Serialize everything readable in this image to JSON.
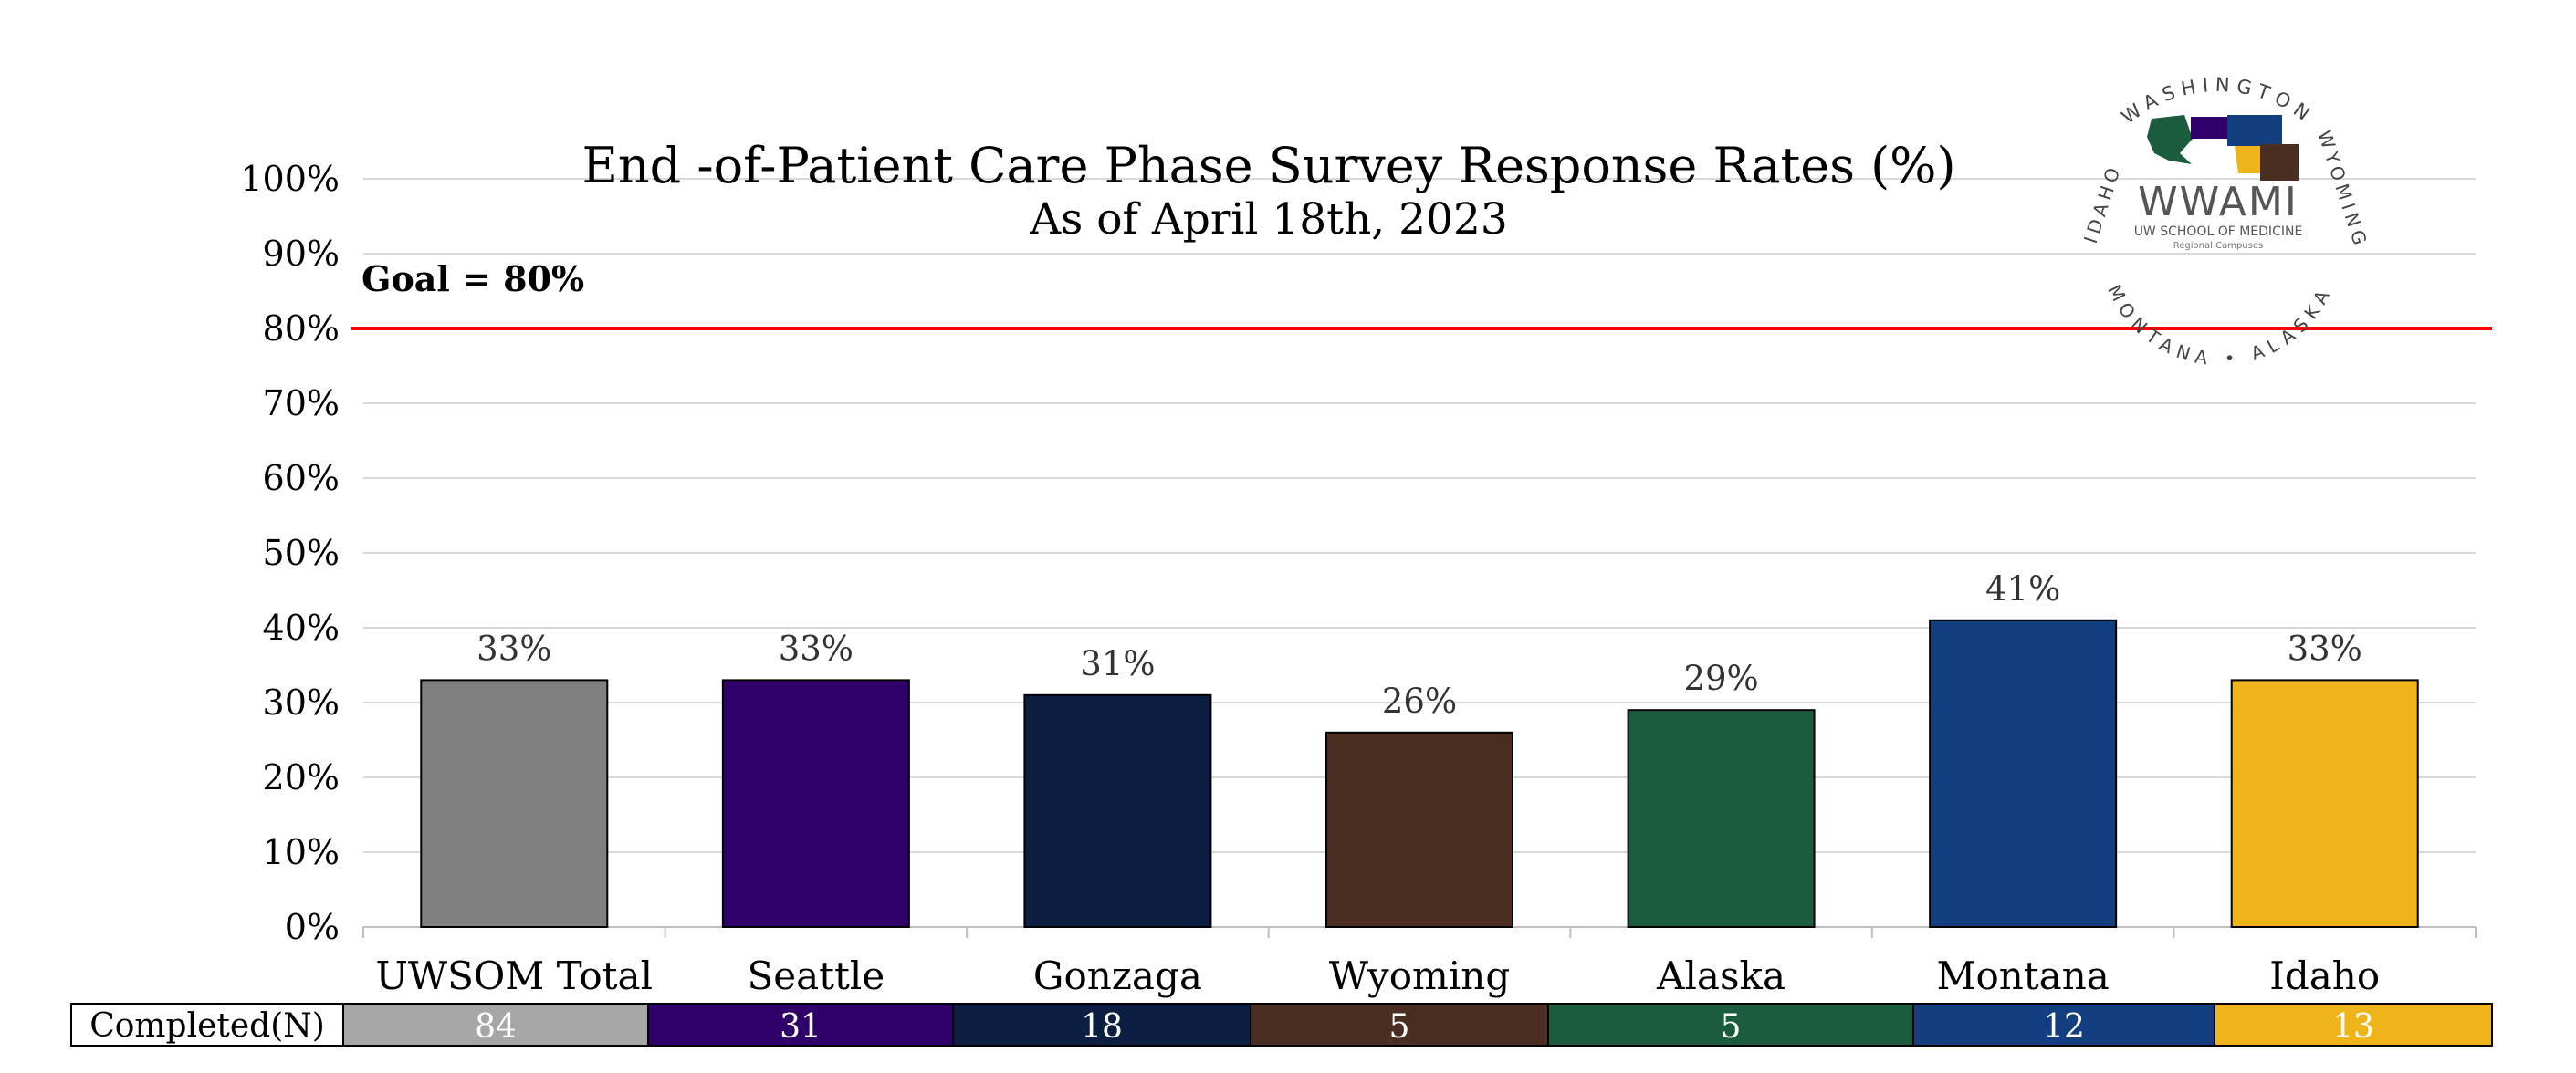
{
  "chart_data": {
    "type": "bar",
    "title": "End -of-Patient Care Phase Survey Response Rates (%)",
    "subtitle": "As of April 18th, 2023",
    "categories": [
      "UWSOM Total",
      "Seattle",
      "Gonzaga",
      "Wyoming",
      "Alaska",
      "Montana",
      "Idaho"
    ],
    "values": [
      33,
      33,
      31,
      26,
      29,
      41,
      33
    ],
    "value_labels": [
      "33%",
      "33%",
      "31%",
      "26%",
      "29%",
      "41%",
      "33%"
    ],
    "colors": [
      "#808080",
      "#30006a",
      "#0c1f42",
      "#4a2e22",
      "#1b5c3e",
      "#133f80",
      "#f0b41b"
    ],
    "ylim": [
      0,
      100
    ],
    "yticks": [
      "0%",
      "10%",
      "20%",
      "30%",
      "40%",
      "50%",
      "60%",
      "70%",
      "80%",
      "90%",
      "100%"
    ],
    "grid": true,
    "goal": {
      "value": 80,
      "label": "Goal = 80%",
      "color": "#ff0000"
    },
    "completed_table": {
      "header": "Completed(N)",
      "values": [
        "84",
        "31",
        "18",
        "5",
        "5",
        "12",
        "13"
      ],
      "fills": [
        "#a6a6a6",
        "#30006a",
        "#0c1f42",
        "#4a2e22",
        "#1b5c3e",
        "#133f80",
        "#f0b41b"
      ]
    }
  },
  "logo": {
    "arc_top": "WASHINGTON",
    "arc_left": "IDAHO",
    "arc_right": "WYOMING",
    "arc_bottom": "MONTANA • ALASKA",
    "name": "WWAMI",
    "line1": "UW SCHOOL OF MEDICINE",
    "line2": "Regional Campuses"
  }
}
